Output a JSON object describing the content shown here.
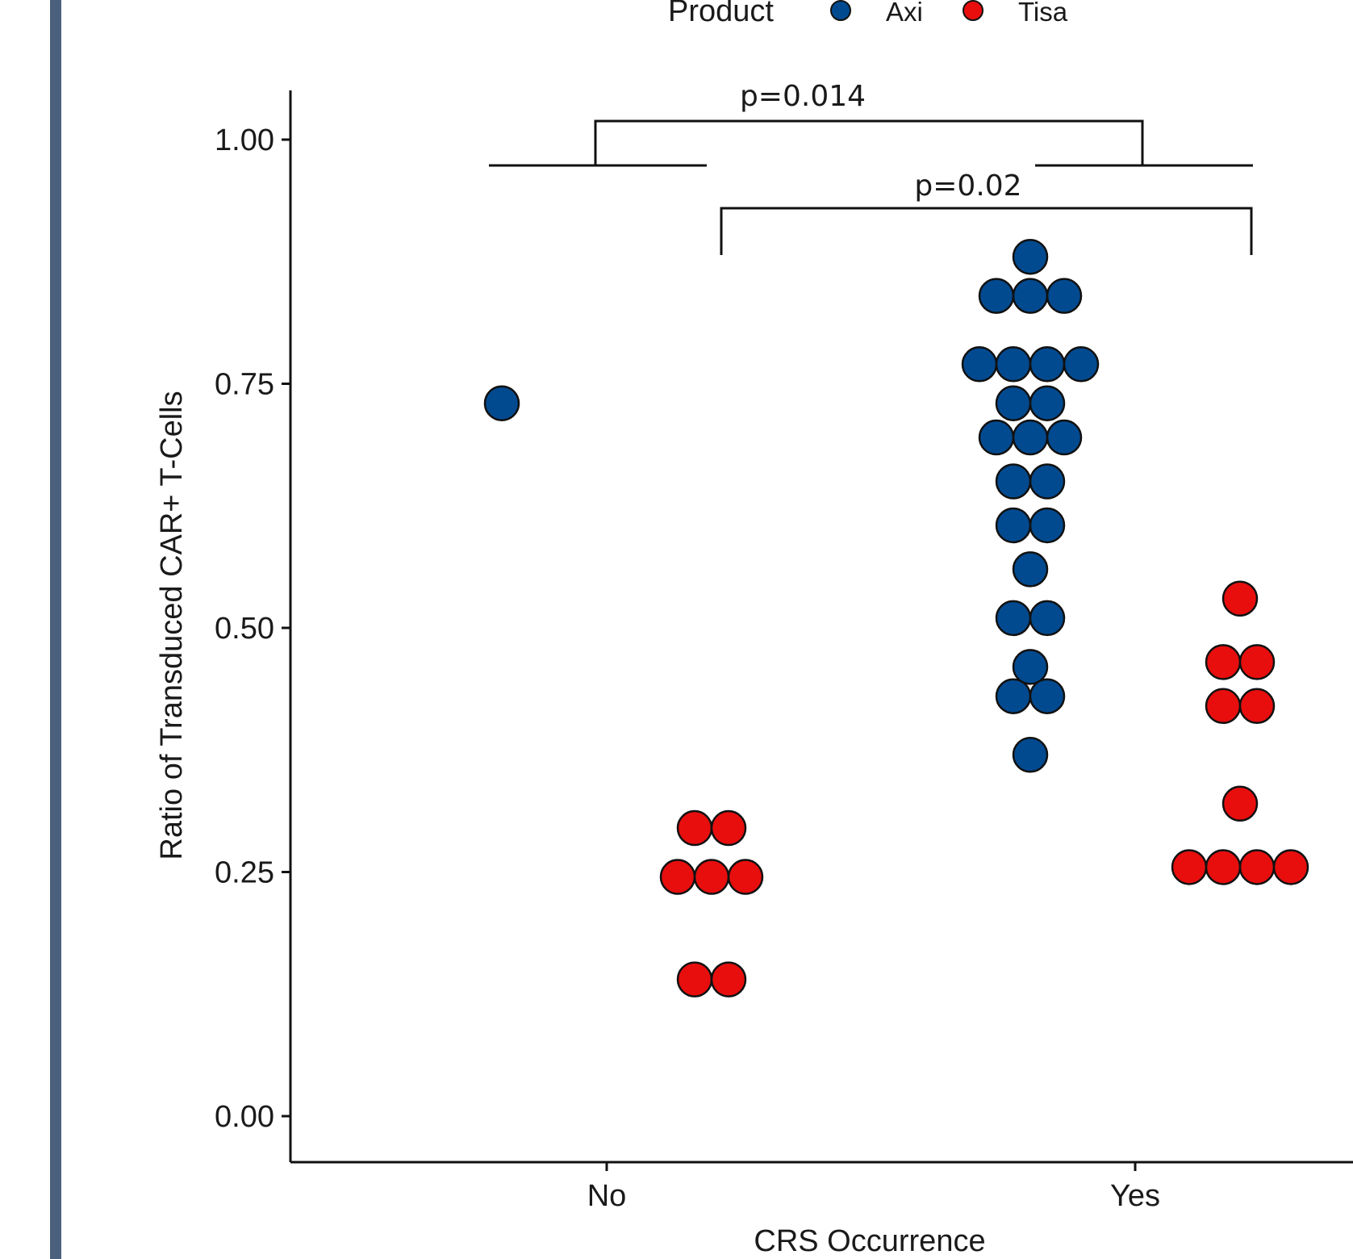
{
  "colors": {
    "left_bar": "#4a607d",
    "axi": "#024a90",
    "tisa": "#e80e0e",
    "stroke": "#111111"
  },
  "chart_data": {
    "type": "scatter",
    "subtype": "beeswarm",
    "title": "",
    "xlabel": "CRS Occurrence",
    "ylabel": "Ratio of Transduced CAR+  T-Cells",
    "categories": [
      "No",
      "Yes"
    ],
    "ylim": [
      -0.05,
      1.05
    ],
    "yticks": [
      0.0,
      0.25,
      0.5,
      0.75,
      1.0
    ],
    "ytick_labels": [
      "0.00",
      "0.25",
      "0.50",
      "0.75",
      "1.00"
    ],
    "grid": false,
    "legend": {
      "title": "Product",
      "placement": "top",
      "entries": [
        "Axi",
        "Tisa"
      ]
    },
    "series": [
      {
        "name": "Axi",
        "color": "#024a90",
        "points": {
          "No": [
            0.73
          ],
          "Yes": [
            0.88,
            0.84,
            0.84,
            0.84,
            0.77,
            0.77,
            0.77,
            0.77,
            0.73,
            0.73,
            0.695,
            0.695,
            0.695,
            0.65,
            0.65,
            0.605,
            0.605,
            0.56,
            0.51,
            0.51,
            0.46,
            0.43,
            0.43,
            0.37
          ]
        }
      },
      {
        "name": "Tisa",
        "color": "#e80e0e",
        "points": {
          "No": [
            0.295,
            0.295,
            0.245,
            0.245,
            0.245,
            0.14,
            0.14
          ],
          "Yes": [
            0.53,
            0.465,
            0.465,
            0.42,
            0.42,
            0.32,
            0.255,
            0.255,
            0.255,
            0.255
          ]
        }
      }
    ],
    "annotations": [
      {
        "label": "p=0.014",
        "compares": "Axi vs Tisa: No vs Yes"
      },
      {
        "label": "p=0.02",
        "compares": "Tisa: No vs Yes"
      }
    ]
  }
}
